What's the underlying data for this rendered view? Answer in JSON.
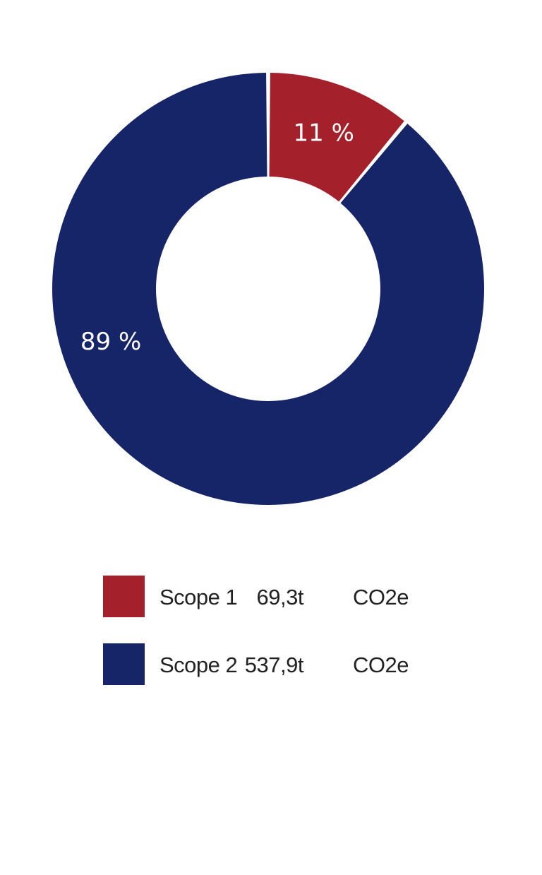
{
  "chart_data": {
    "type": "pie",
    "donut": true,
    "title": "",
    "series": [
      {
        "name": "Scope 1",
        "percent": 11,
        "label": "11 %",
        "value": 69.3,
        "value_text": "69,3t",
        "unit": "CO2e",
        "color": "#A4212B"
      },
      {
        "name": "Scope 2",
        "percent": 89,
        "label": "89 %",
        "value": 537.9,
        "value_text": "537,9t",
        "unit": "CO2e",
        "color": "#162468"
      }
    ],
    "legend_position": "bottom"
  }
}
